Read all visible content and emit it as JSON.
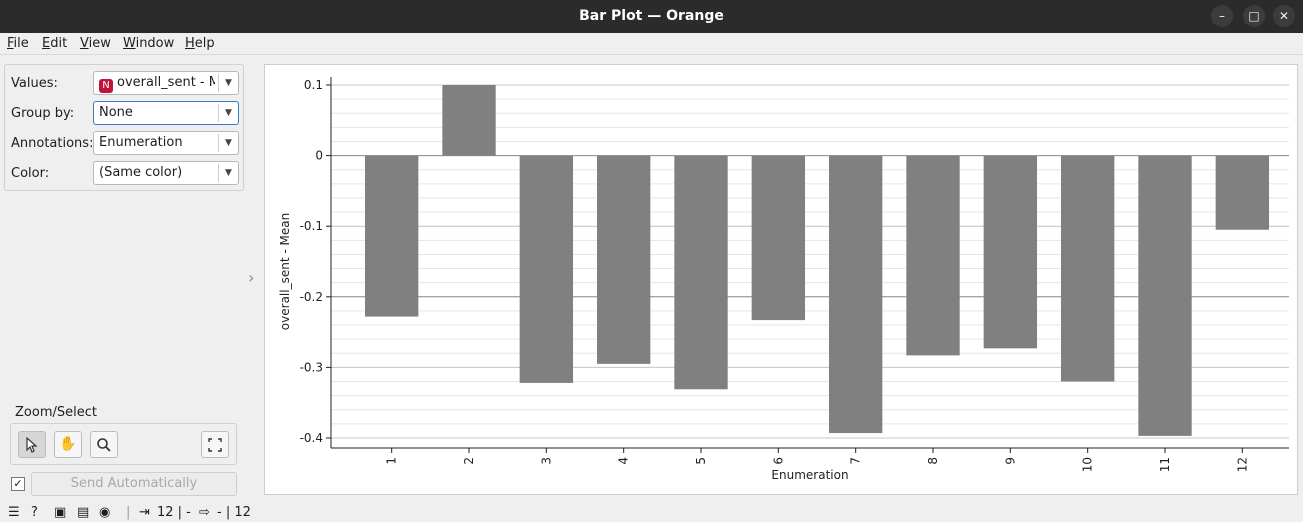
{
  "window": {
    "title": "Bar Plot — Orange"
  },
  "menu": [
    "File",
    "Edit",
    "View",
    "Window",
    "Help"
  ],
  "controls": {
    "values_label": "Values:",
    "values_value": "overall_sent - Mean",
    "values_badge": "N",
    "groupby_label": "Group by:",
    "groupby_value": "None",
    "annotations_label": "Annotations:",
    "annotations_value": "Enumeration",
    "color_label": "Color:",
    "color_value": "(Same color)"
  },
  "zoom": {
    "title": "Zoom/Select"
  },
  "send": {
    "label": "Send Automatically",
    "checked": "✓"
  },
  "status": {
    "input_count": "12 | -",
    "output_count": "- | 12"
  },
  "chart_data": {
    "type": "bar",
    "categories": [
      "1",
      "2",
      "3",
      "4",
      "5",
      "6",
      "7",
      "8",
      "9",
      "10",
      "11",
      "12"
    ],
    "values": [
      -0.228,
      0.1,
      -0.322,
      -0.295,
      -0.331,
      -0.233,
      -0.393,
      -0.283,
      -0.273,
      -0.32,
      -0.397,
      -0.105
    ],
    "xlabel": "Enumeration",
    "ylabel": "overall_sent - Mean",
    "ylim": [
      -0.4,
      0.1
    ],
    "yticks": [
      0.1,
      0,
      -0.1,
      -0.2,
      -0.3,
      -0.4
    ],
    "ytick_labels": [
      "0.1",
      "0",
      "-0.1",
      "-0.2",
      "-0.3",
      "-0.4"
    ],
    "bar_color": "#808080",
    "grid": true
  }
}
